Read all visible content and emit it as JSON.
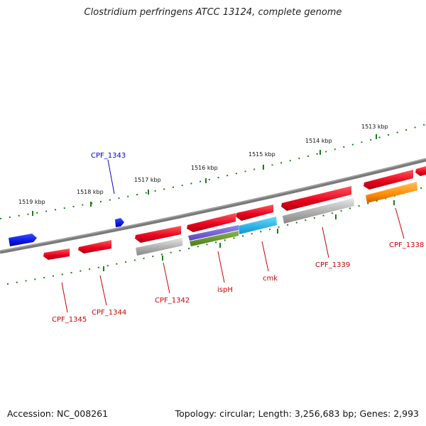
{
  "title": "Clostridium perfringens ATCC 13124, complete genome",
  "accession_text": "Accession: NC_008261",
  "topology_text": "Topology: circular; Length: 3,256,683 bp; Genes: 2,993",
  "colors": {
    "backbone": "#7a7a7a",
    "scale": "#1f7a1f",
    "gene_red": "#e8001c",
    "gene_blue": "#0a14e6",
    "gene_gray": "#aaaaaa",
    "gene_orange": "#ff8c00",
    "gene_purple": "#6655cc",
    "gene_olive": "#5e8a24",
    "gene_cyan": "#1aaee6",
    "label_red": "#cc0000",
    "label_blue": "#0000cc"
  },
  "scale_labels": [
    "1519 kbp",
    "1518 kbp",
    "1517 kbp",
    "1516 kbp",
    "1515 kbp",
    "1514 kbp",
    "1513 kbp"
  ],
  "gene_labels": [
    "CPF_1343",
    "CPF_1345",
    "CPF_1344",
    "CPF_1342",
    "ispH",
    "cmk",
    "CPF_1339",
    "CPF_1338"
  ]
}
